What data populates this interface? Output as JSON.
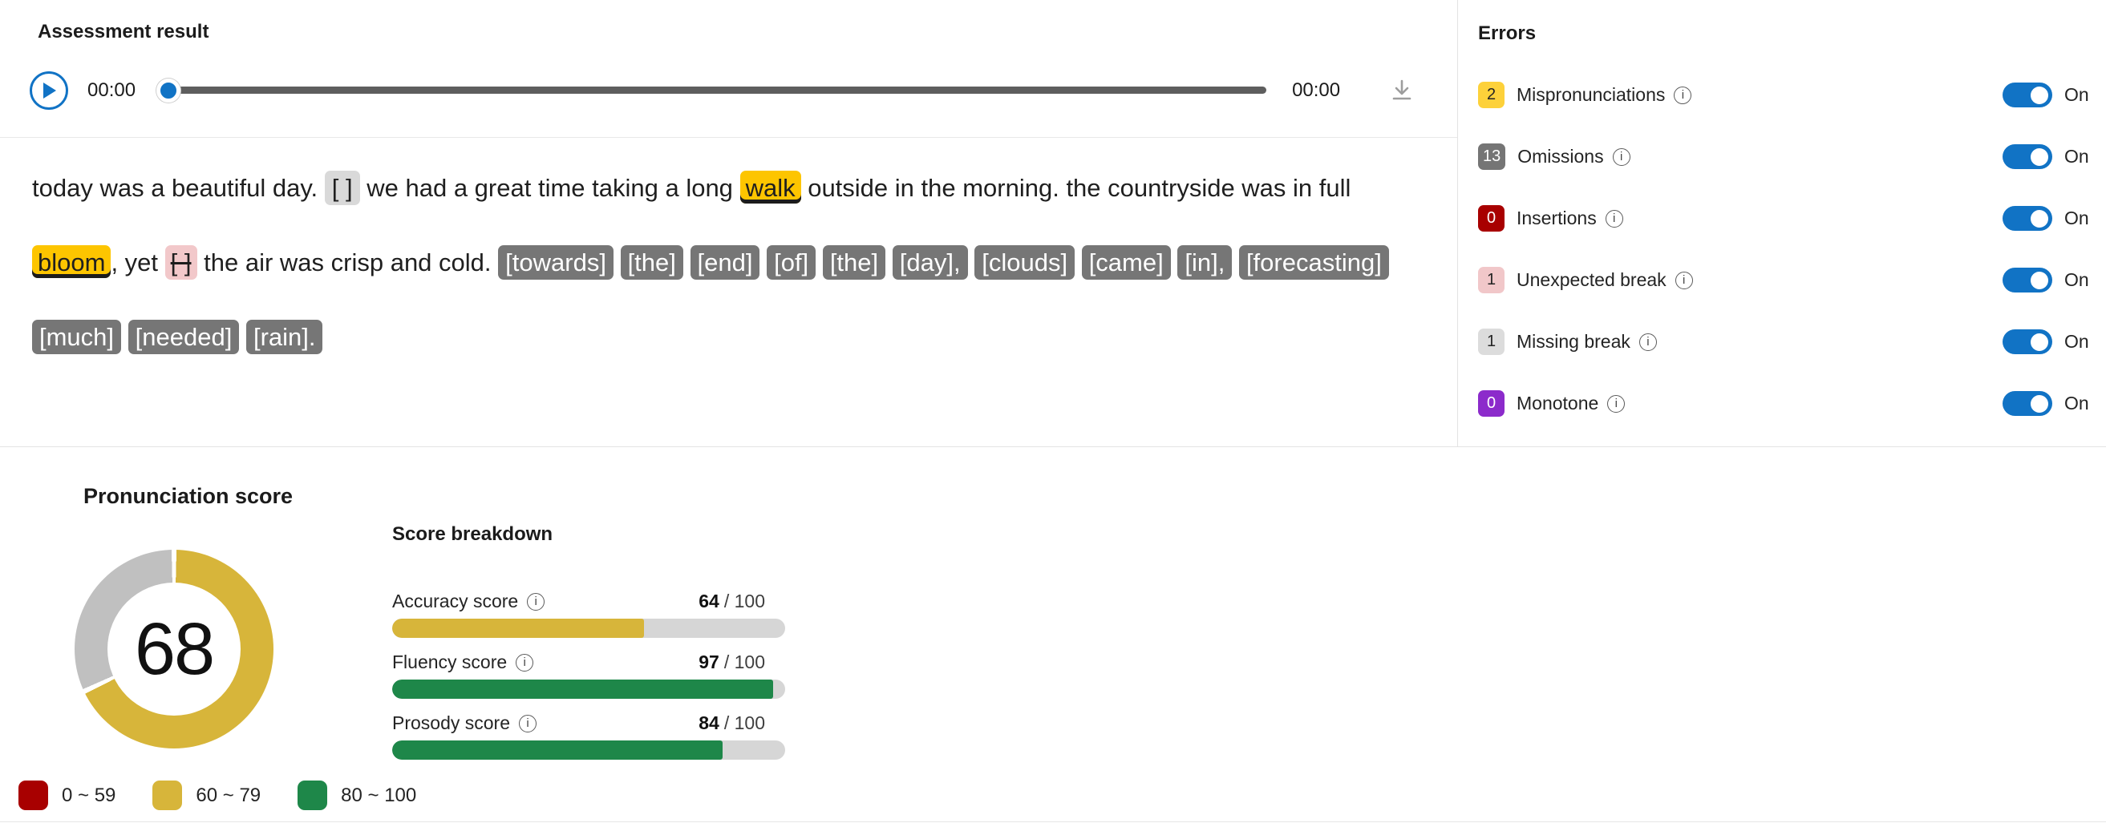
{
  "header": {
    "title": "Assessment result"
  },
  "audio_player": {
    "current_time": "00:00",
    "total_time": "00:00"
  },
  "transcript": {
    "tokens": [
      {
        "text": "today was a beautiful day.",
        "type": "normal"
      },
      {
        "text": "[ ]",
        "type": "missing-break"
      },
      {
        "text": "we had a great time taking a long",
        "type": "normal"
      },
      {
        "text": "walk",
        "type": "mispronunciation"
      },
      {
        "text": "outside in the morning. the countryside was in full",
        "type": "normal"
      },
      {
        "text": "bloom",
        "type": "mispronunciation"
      },
      {
        "text": ", yet",
        "type": "normal",
        "no_space_before": true
      },
      {
        "text": "[ ]",
        "type": "unexpected-break"
      },
      {
        "text": "the air was crisp and cold.",
        "type": "normal"
      },
      {
        "text": "[towards]",
        "type": "omission"
      },
      {
        "text": "[the]",
        "type": "omission"
      },
      {
        "text": "[end]",
        "type": "omission"
      },
      {
        "text": "[of]",
        "type": "omission"
      },
      {
        "text": "[the]",
        "type": "omission"
      },
      {
        "text": "[day],",
        "type": "omission"
      },
      {
        "text": "[clouds]",
        "type": "omission"
      },
      {
        "text": "[came]",
        "type": "omission"
      },
      {
        "text": "[in],",
        "type": "omission"
      },
      {
        "text": "[forecasting]",
        "type": "omission"
      },
      {
        "text": "[much]",
        "type": "omission"
      },
      {
        "text": "[needed]",
        "type": "omission"
      },
      {
        "text": "[rain].",
        "type": "omission"
      }
    ]
  },
  "errors_panel": {
    "title": "Errors",
    "rows": [
      {
        "count": "2",
        "label": "Mispronunciations",
        "badge_style": "yellow",
        "toggle": "On"
      },
      {
        "count": "13",
        "label": "Omissions",
        "badge_style": "gray",
        "toggle": "On"
      },
      {
        "count": "0",
        "label": "Insertions",
        "badge_style": "dark-red",
        "toggle": "On"
      },
      {
        "count": "1",
        "label": "Unexpected break",
        "badge_style": "pink",
        "toggle": "On"
      },
      {
        "count": "1",
        "label": "Missing break",
        "badge_style": "light-gray",
        "toggle": "On"
      },
      {
        "count": "0",
        "label": "Monotone",
        "badge_style": "purple",
        "toggle": "On"
      }
    ]
  },
  "pronunciation": {
    "title": "Pronunciation score",
    "score": 68,
    "donut_color": "#d7b53a",
    "donut_rest_color": "#c0c0c0",
    "breakdown_title": "Score breakdown",
    "scores": [
      {
        "label": "Accuracy score",
        "value": 64,
        "max": 100,
        "color": "#d7b53a"
      },
      {
        "label": "Fluency score",
        "value": 97,
        "max": 100,
        "color": "#1e8749"
      },
      {
        "label": "Prosody score",
        "value": 84,
        "max": 100,
        "color": "#1e8749"
      }
    ],
    "legend": [
      {
        "label": "0 ~ 59",
        "color": "#a80000"
      },
      {
        "label": "60 ~ 79",
        "color": "#d7b53a"
      },
      {
        "label": "80 ~ 100",
        "color": "#1e8749"
      }
    ]
  },
  "colors": {
    "accent_blue": "#1173c5",
    "highlight_yellow": "#fdc500",
    "omission_gray": "#767676",
    "insertion_red": "#a80000",
    "unexpected_break_pink": "#f1c7c9",
    "missing_break_gray": "#dcdcdc",
    "monotone_purple": "#8c2bcb"
  },
  "chart_data": [
    {
      "type": "pie",
      "title": "Pronunciation score",
      "labels": [
        "score",
        "remainder"
      ],
      "values": [
        68,
        32
      ],
      "center_label": "68",
      "colors": [
        "#d7b53a",
        "#c0c0c0"
      ],
      "legend_ranges": [
        {
          "range": "0 ~ 59",
          "color": "#a80000"
        },
        {
          "range": "60 ~ 79",
          "color": "#d7b53a"
        },
        {
          "range": "80 ~ 100",
          "color": "#1e8749"
        }
      ]
    },
    {
      "type": "bar",
      "title": "Score breakdown",
      "categories": [
        "Accuracy score",
        "Fluency score",
        "Prosody score"
      ],
      "values": [
        64,
        97,
        84
      ],
      "xlim": [
        0,
        100
      ],
      "orientation": "horizontal"
    }
  ]
}
